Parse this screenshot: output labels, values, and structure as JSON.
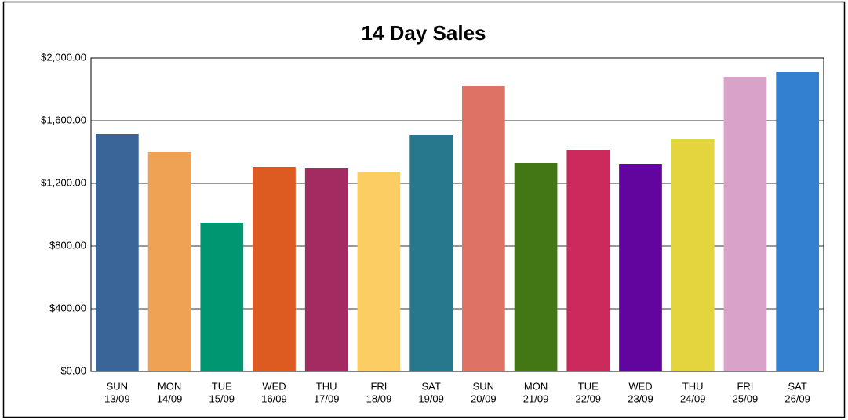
{
  "chart_data": {
    "type": "bar",
    "title": "14 Day Sales",
    "categories": [
      [
        "SUN",
        "13/09"
      ],
      [
        "MON",
        "14/09"
      ],
      [
        "TUE",
        "15/09"
      ],
      [
        "WED",
        "16/09"
      ],
      [
        "THU",
        "17/09"
      ],
      [
        "FRI",
        "18/09"
      ],
      [
        "SAT",
        "19/09"
      ],
      [
        "SUN",
        "20/09"
      ],
      [
        "MON",
        "21/09"
      ],
      [
        "TUE",
        "22/09"
      ],
      [
        "WED",
        "23/09"
      ],
      [
        "THU",
        "24/09"
      ],
      [
        "FRI",
        "25/09"
      ],
      [
        "SAT",
        "26/09"
      ]
    ],
    "values": [
      1515,
      1400,
      950,
      1305,
      1295,
      1275,
      1510,
      1820,
      1330,
      1415,
      1325,
      1480,
      1880,
      1910
    ],
    "colors": [
      "#3a6598",
      "#f0a254",
      "#009672",
      "#dd5a21",
      "#a32b61",
      "#fccd62",
      "#28788d",
      "#dd7265",
      "#437716",
      "#cc2a5c",
      "#61059e",
      "#e4d43e",
      "#d9a2c9",
      "#3280cf"
    ],
    "ylim": [
      0,
      2000
    ],
    "yticks": [
      {
        "value": 0,
        "label": "$0.00"
      },
      {
        "value": 400,
        "label": "$400.00"
      },
      {
        "value": 800,
        "label": "$800.00"
      },
      {
        "value": 1200,
        "label": "$1,200.00"
      },
      {
        "value": 1600,
        "label": "$1,600.00"
      },
      {
        "value": 2000,
        "label": "$2,000.00"
      }
    ],
    "grid": true
  }
}
